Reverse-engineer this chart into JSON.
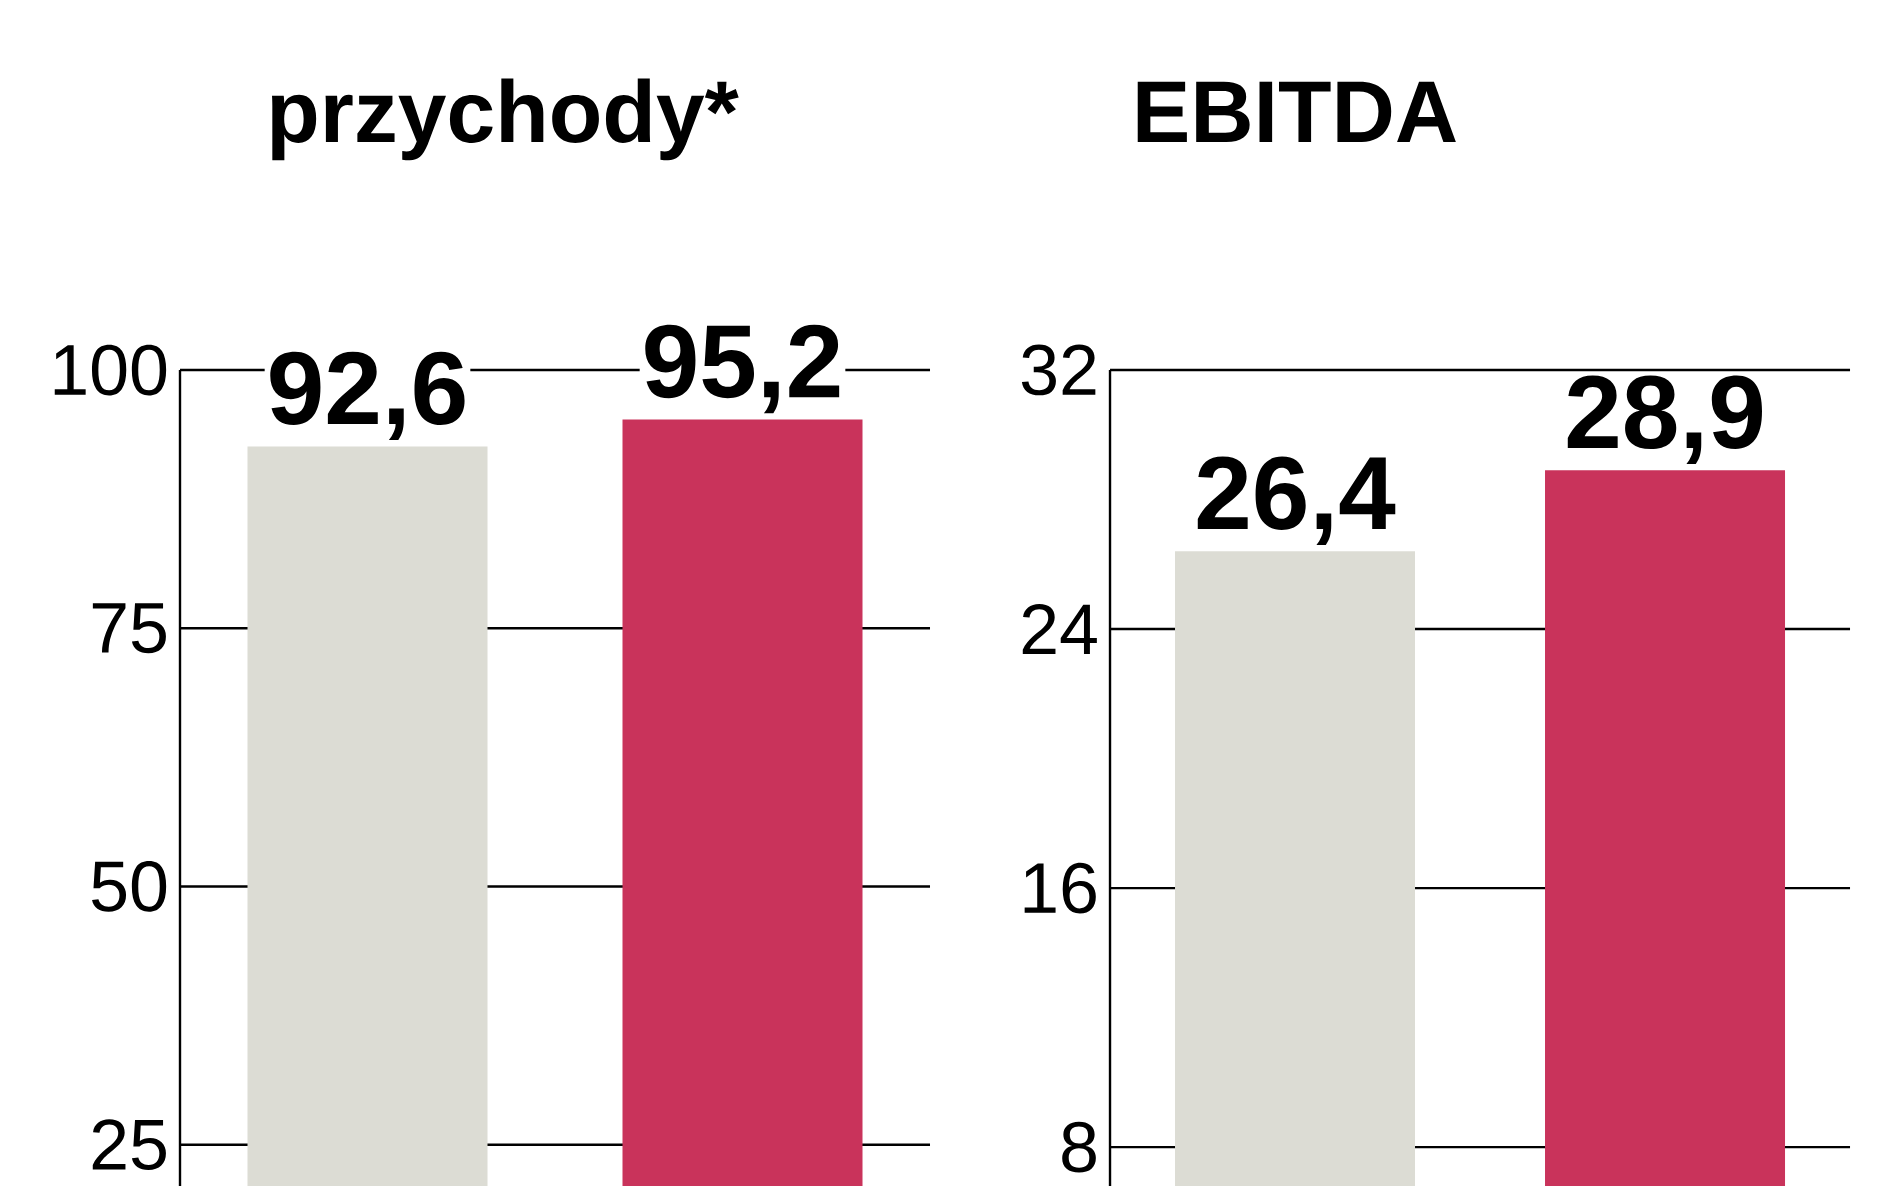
{
  "chart_data": [
    {
      "type": "bar",
      "title": "przychody*",
      "categories": [
        null,
        null
      ],
      "values": [
        92.6,
        95.2
      ],
      "colors": [
        "#dcdcd4",
        "#c9335b"
      ],
      "value_labels": [
        "92,6",
        "95,2"
      ],
      "ylim": [
        21,
        100
      ],
      "yticks": [
        25,
        50,
        75,
        100
      ],
      "grid": "y"
    },
    {
      "type": "bar",
      "title": "EBITDA",
      "categories": [
        null,
        null
      ],
      "values": [
        26.4,
        28.9
      ],
      "colors": [
        "#dcdcd4",
        "#c9335b"
      ],
      "value_labels": [
        "26,4",
        "28,9"
      ],
      "ylim": [
        6.8,
        32
      ],
      "yticks": [
        8,
        16,
        24,
        32
      ],
      "grid": "y"
    }
  ]
}
